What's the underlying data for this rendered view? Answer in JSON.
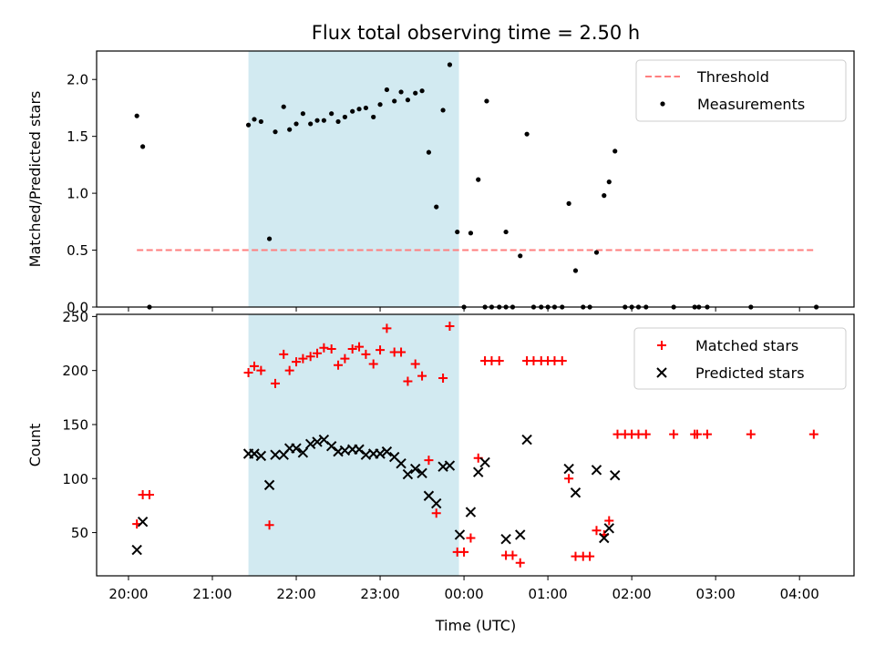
{
  "figure": {
    "title": "Flux total observing time = 2.50 h",
    "xlabel": "Time (UTC)"
  },
  "colors": {
    "shade": "#add8e6",
    "threshold": "#ff7f7f",
    "measurements": "#000000",
    "matched": "#ff0000",
    "predicted": "#000000"
  },
  "chart_data": [
    {
      "type": "scatter",
      "ylabel": "Matched/Predicted stars",
      "x_axis": "time (h UTC, values beyond 24 are after midnight)",
      "xlim": [
        19.62,
        28.65
      ],
      "ylim": [
        0,
        2.25
      ],
      "yticks": [
        0.0,
        0.5,
        1.0,
        1.5,
        2.0
      ],
      "ytick_labels": [
        "0.0",
        "0.5",
        "1.0",
        "1.5",
        "2.0"
      ],
      "shaded_span": [
        21.43,
        23.94
      ],
      "threshold": {
        "name": "Threshold",
        "y": 0.5,
        "x": [
          20.1,
          28.2
        ],
        "style": "dashed"
      },
      "series": [
        {
          "name": "Measurements",
          "marker": "dot",
          "points": [
            [
              20.1,
              1.68
            ],
            [
              20.17,
              1.41
            ],
            [
              20.25,
              0.0
            ],
            [
              21.43,
              1.6
            ],
            [
              21.5,
              1.65
            ],
            [
              21.58,
              1.63
            ],
            [
              21.68,
              0.6
            ],
            [
              21.75,
              1.54
            ],
            [
              21.85,
              1.76
            ],
            [
              21.92,
              1.56
            ],
            [
              22.0,
              1.61
            ],
            [
              22.08,
              1.7
            ],
            [
              22.17,
              1.61
            ],
            [
              22.25,
              1.64
            ],
            [
              22.33,
              1.64
            ],
            [
              22.42,
              1.7
            ],
            [
              22.5,
              1.63
            ],
            [
              22.58,
              1.67
            ],
            [
              22.67,
              1.72
            ],
            [
              22.75,
              1.74
            ],
            [
              22.83,
              1.75
            ],
            [
              22.92,
              1.67
            ],
            [
              23.0,
              1.78
            ],
            [
              23.08,
              1.91
            ],
            [
              23.17,
              1.81
            ],
            [
              23.25,
              1.89
            ],
            [
              23.33,
              1.82
            ],
            [
              23.42,
              1.88
            ],
            [
              23.5,
              1.9
            ],
            [
              23.58,
              1.36
            ],
            [
              23.67,
              0.88
            ],
            [
              23.75,
              1.73
            ],
            [
              23.83,
              2.13
            ],
            [
              23.92,
              0.66
            ],
            [
              24.0,
              0.0
            ],
            [
              24.08,
              0.65
            ],
            [
              24.17,
              1.12
            ],
            [
              24.25,
              0.0
            ],
            [
              24.27,
              1.81
            ],
            [
              24.33,
              0.0
            ],
            [
              24.42,
              0.0
            ],
            [
              24.5,
              0.0
            ],
            [
              24.5,
              0.66
            ],
            [
              24.58,
              0.0
            ],
            [
              24.67,
              0.45
            ],
            [
              24.75,
              1.52
            ],
            [
              24.83,
              0.0
            ],
            [
              24.92,
              0.0
            ],
            [
              25.0,
              0.0
            ],
            [
              25.08,
              0.0
            ],
            [
              25.17,
              0.0
            ],
            [
              25.25,
              0.91
            ],
            [
              25.33,
              0.32
            ],
            [
              25.42,
              0.0
            ],
            [
              25.5,
              0.0
            ],
            [
              25.58,
              0.48
            ],
            [
              25.67,
              0.98
            ],
            [
              25.73,
              1.1
            ],
            [
              25.8,
              1.37
            ],
            [
              25.92,
              0.0
            ],
            [
              26.0,
              0.0
            ],
            [
              26.08,
              0.0
            ],
            [
              26.17,
              0.0
            ],
            [
              26.5,
              0.0
            ],
            [
              26.75,
              0.0
            ],
            [
              26.8,
              0.0
            ],
            [
              26.9,
              0.0
            ],
            [
              27.42,
              0.0
            ],
            [
              28.2,
              0.0
            ]
          ]
        }
      ],
      "legend": {
        "position": "upper right",
        "entries": [
          "Threshold",
          "Measurements"
        ]
      }
    },
    {
      "type": "scatter",
      "ylabel": "Count",
      "xlabel": "Time (UTC)",
      "x_axis": "time (h UTC, values beyond 24 are after midnight)",
      "xlim": [
        19.62,
        28.65
      ],
      "ylim": [
        10,
        252
      ],
      "yticks": [
        50,
        100,
        150,
        200,
        250
      ],
      "ytick_labels": [
        "50",
        "100",
        "150",
        "200",
        "250"
      ],
      "xticks": [
        20,
        21,
        22,
        23,
        24,
        25,
        26,
        27,
        28
      ],
      "xtick_labels": [
        "20:00",
        "21:00",
        "22:00",
        "23:00",
        "00:00",
        "01:00",
        "02:00",
        "03:00",
        "04:00"
      ],
      "shaded_span": [
        21.43,
        23.94
      ],
      "series": [
        {
          "name": "Matched stars",
          "marker": "plus",
          "points": [
            [
              20.1,
              58
            ],
            [
              20.17,
              85
            ],
            [
              20.25,
              85
            ],
            [
              21.43,
              198
            ],
            [
              21.5,
              204
            ],
            [
              21.58,
              200
            ],
            [
              21.68,
              57
            ],
            [
              21.75,
              188
            ],
            [
              21.85,
              215
            ],
            [
              21.92,
              200
            ],
            [
              22.0,
              208
            ],
            [
              22.08,
              211
            ],
            [
              22.17,
              213
            ],
            [
              22.25,
              216
            ],
            [
              22.33,
              221
            ],
            [
              22.42,
              220
            ],
            [
              22.5,
              205
            ],
            [
              22.58,
              211
            ],
            [
              22.67,
              220
            ],
            [
              22.75,
              222
            ],
            [
              22.83,
              215
            ],
            [
              22.92,
              206
            ],
            [
              23.0,
              219
            ],
            [
              23.08,
              239
            ],
            [
              23.17,
              217
            ],
            [
              23.25,
              217
            ],
            [
              23.33,
              190
            ],
            [
              23.42,
              206
            ],
            [
              23.5,
              195
            ],
            [
              23.58,
              117
            ],
            [
              23.67,
              68
            ],
            [
              23.75,
              193
            ],
            [
              23.83,
              241
            ],
            [
              23.92,
              32
            ],
            [
              24.0,
              32
            ],
            [
              24.08,
              45
            ],
            [
              24.17,
              119
            ],
            [
              24.25,
              209
            ],
            [
              24.33,
              209
            ],
            [
              24.42,
              209
            ],
            [
              24.5,
              29
            ],
            [
              24.58,
              29
            ],
            [
              24.67,
              22
            ],
            [
              24.75,
              209
            ],
            [
              24.83,
              209
            ],
            [
              24.92,
              209
            ],
            [
              25.0,
              209
            ],
            [
              25.08,
              209
            ],
            [
              25.17,
              209
            ],
            [
              25.25,
              100
            ],
            [
              25.33,
              28
            ],
            [
              25.42,
              28
            ],
            [
              25.5,
              28
            ],
            [
              25.58,
              52
            ],
            [
              25.67,
              48
            ],
            [
              25.73,
              61
            ],
            [
              25.83,
              141
            ],
            [
              25.92,
              141
            ],
            [
              26.0,
              141
            ],
            [
              26.08,
              141
            ],
            [
              26.17,
              141
            ],
            [
              26.5,
              141
            ],
            [
              26.75,
              141
            ],
            [
              26.78,
              141
            ],
            [
              26.9,
              141
            ],
            [
              27.42,
              141
            ],
            [
              28.17,
              141
            ]
          ]
        },
        {
          "name": "Predicted stars",
          "marker": "x",
          "points": [
            [
              20.1,
              34
            ],
            [
              20.17,
              60
            ],
            [
              21.43,
              123
            ],
            [
              21.5,
              123
            ],
            [
              21.58,
              121
            ],
            [
              21.68,
              94
            ],
            [
              21.75,
              122
            ],
            [
              21.85,
              122
            ],
            [
              21.92,
              128
            ],
            [
              22.0,
              128
            ],
            [
              22.08,
              124
            ],
            [
              22.17,
              132
            ],
            [
              22.25,
              134
            ],
            [
              22.33,
              136
            ],
            [
              22.42,
              130
            ],
            [
              22.5,
              125
            ],
            [
              22.58,
              126
            ],
            [
              22.67,
              127
            ],
            [
              22.75,
              127
            ],
            [
              22.83,
              122
            ],
            [
              22.92,
              123
            ],
            [
              23.0,
              123
            ],
            [
              23.08,
              125
            ],
            [
              23.17,
              120
            ],
            [
              23.25,
              114
            ],
            [
              23.33,
              104
            ],
            [
              23.42,
              109
            ],
            [
              23.5,
              105
            ],
            [
              23.58,
              84
            ],
            [
              23.67,
              77
            ],
            [
              23.75,
              111
            ],
            [
              23.83,
              112
            ],
            [
              23.95,
              48
            ],
            [
              24.08,
              69
            ],
            [
              24.17,
              106
            ],
            [
              24.25,
              115
            ],
            [
              24.5,
              44
            ],
            [
              24.67,
              48
            ],
            [
              24.75,
              136
            ],
            [
              25.25,
              109
            ],
            [
              25.33,
              87
            ],
            [
              25.58,
              108
            ],
            [
              25.67,
              45
            ],
            [
              25.73,
              54
            ],
            [
              25.8,
              103
            ]
          ]
        }
      ],
      "legend": {
        "position": "upper right",
        "entries": [
          "Matched stars",
          "Predicted stars"
        ]
      }
    }
  ]
}
